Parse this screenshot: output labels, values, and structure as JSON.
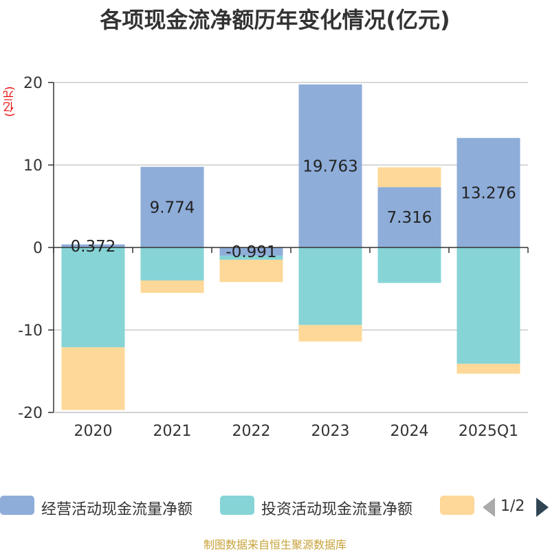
{
  "title": "各项现金流净额历年变化情况(亿元)",
  "y_unit": "(亿元)",
  "source": "制图数据来自恒生聚源数据库",
  "legend": {
    "items": [
      {
        "label": "经营活动现金流量净额",
        "color": "#8eadd9"
      },
      {
        "label": "投资活动现金流量净额",
        "color": "#86d4d6"
      },
      {
        "label": "",
        "color": "#fdd898"
      }
    ],
    "page": "1/2"
  },
  "chart_data": {
    "type": "bar",
    "stacked": true,
    "categories": [
      "2020",
      "2021",
      "2022",
      "2023",
      "2024",
      "2025Q1"
    ],
    "ylim": [
      -20,
      20
    ],
    "yticks": [
      "20",
      "10",
      "0",
      "-10",
      "-20"
    ],
    "grid": true,
    "series": [
      {
        "name": "经营活动现金流量净额",
        "color": "#8eadd9",
        "values": [
          0.372,
          9.774,
          -0.991,
          19.763,
          7.316,
          13.276
        ],
        "labels": [
          "0.372",
          "9.774",
          "-0.991",
          "19.763",
          "7.316",
          "13.276"
        ]
      },
      {
        "name": "投资活动现金流量净额",
        "color": "#86d4d6",
        "values": [
          -12.1,
          -4.0,
          -0.5,
          -9.4,
          -4.3,
          -14.1
        ]
      },
      {
        "color": "#fdd898",
        "values": [
          -7.6,
          -1.5,
          -2.7,
          -2.0,
          2.4,
          -1.2
        ]
      }
    ]
  }
}
